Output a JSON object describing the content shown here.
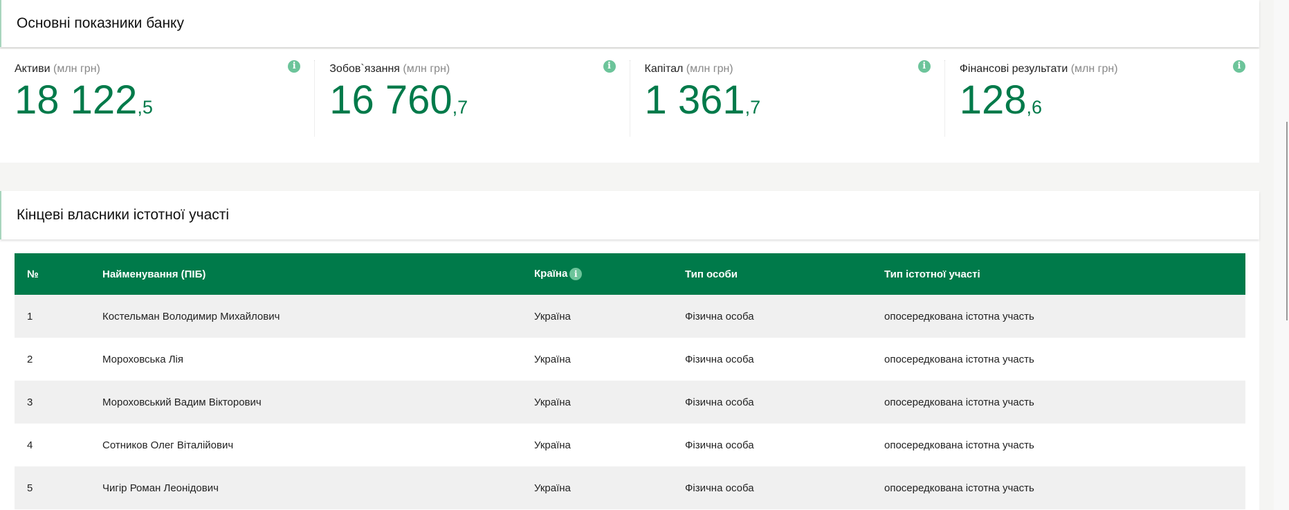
{
  "main_indicators": {
    "title": "Основні показники банку",
    "metrics": [
      {
        "label": "Активи",
        "unit": "(млн грн)",
        "int": "18 122",
        "dec": ",5"
      },
      {
        "label": "Зобов`язання",
        "unit": "(млн грн)",
        "int": "16 760",
        "dec": ",7"
      },
      {
        "label": "Капітал",
        "unit": "(млн грн)",
        "int": "1 361",
        "dec": ",7"
      },
      {
        "label": "Фінансові результати",
        "unit": "(млн грн)",
        "int": "128",
        "dec": ",6"
      }
    ],
    "info_glyph": "i"
  },
  "owners": {
    "title": "Кінцеві власники істотної участі",
    "columns": [
      "№",
      "Найменування (ПІБ)",
      "Країна",
      "Тип особи",
      "Тип істотної участі"
    ],
    "rows": [
      [
        "1",
        "Костельман Володимир Михайлович",
        "Україна",
        "Фізична особа",
        "опосередкована істотна участь"
      ],
      [
        "2",
        "Мороховська Лія",
        "Україна",
        "Фізична особа",
        "опосередкована істотна участь"
      ],
      [
        "3",
        "Мороховський Вадим Вікторович",
        "Україна",
        "Фізична особа",
        "опосередкована істотна участь"
      ],
      [
        "4",
        "Сотников Олег Віталійович",
        "Україна",
        "Фізична особа",
        "опосередкована істотна участь"
      ],
      [
        "5",
        "Чигір Роман Леонідович",
        "Україна",
        "Фізична особа",
        "опосередкована істотна участь"
      ]
    ]
  },
  "colors": {
    "accent": "#007a4a",
    "info": "#6cc49a",
    "row_alt": "#f0f0f0"
  }
}
